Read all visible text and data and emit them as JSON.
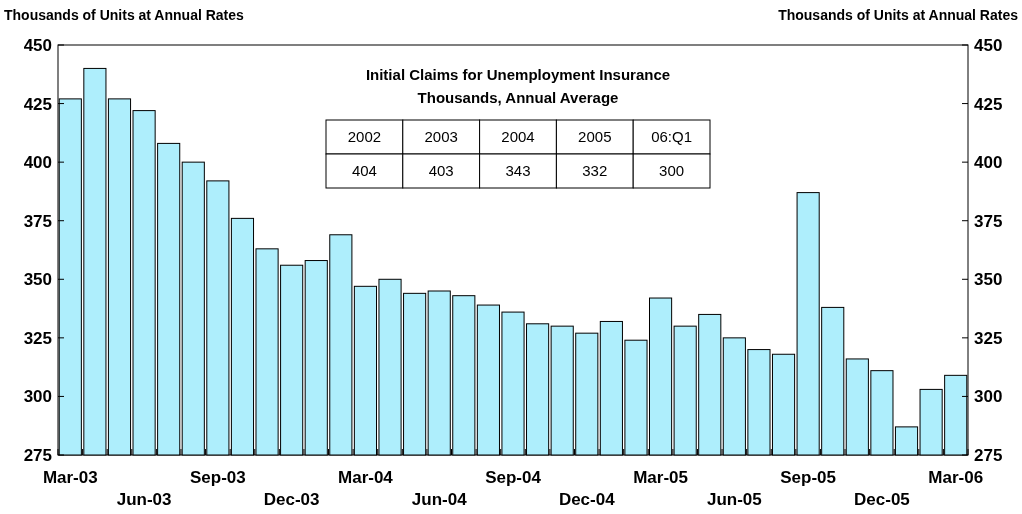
{
  "chart_data": {
    "type": "bar",
    "ylabel": "Thousands of Units at Annual Rates",
    "y2label": "Thousands of Units at Annual Rates",
    "categories": [
      "Mar-03",
      null,
      null,
      "Jun-03",
      null,
      null,
      "Sep-03",
      null,
      null,
      "Dec-03",
      null,
      null,
      "Mar-04",
      null,
      null,
      "Jun-04",
      null,
      null,
      "Sep-04",
      null,
      null,
      "Dec-04",
      null,
      null,
      "Mar-05",
      null,
      null,
      "Jun-05",
      null,
      null,
      "Sep-05",
      null,
      null,
      "Dec-05",
      null,
      null,
      "Mar-06"
    ],
    "values": [
      427,
      440,
      427,
      422,
      408,
      400,
      392,
      376,
      363,
      356,
      358,
      369,
      347,
      350,
      344,
      345,
      343,
      339,
      336,
      331,
      330,
      327,
      332,
      324,
      342,
      330,
      335,
      325,
      320,
      318,
      387,
      338,
      316,
      311,
      287,
      303,
      309
    ],
    "color": "#aeeefc",
    "ylim": [
      275,
      450
    ],
    "yticks": [
      275,
      300,
      325,
      350,
      375,
      400,
      425,
      450
    ],
    "y2lim": [
      275,
      450
    ],
    "y2ticks": [
      275,
      300,
      325,
      350,
      375,
      400,
      425,
      450
    ],
    "annotations": [
      "Initial Claims for Unemployment Insurance",
      "Thousands, Annual Average",
      "2002",
      "2003",
      "2004",
      "2005",
      "06:Q1",
      "404",
      "403",
      "343",
      "332",
      "300"
    ]
  }
}
